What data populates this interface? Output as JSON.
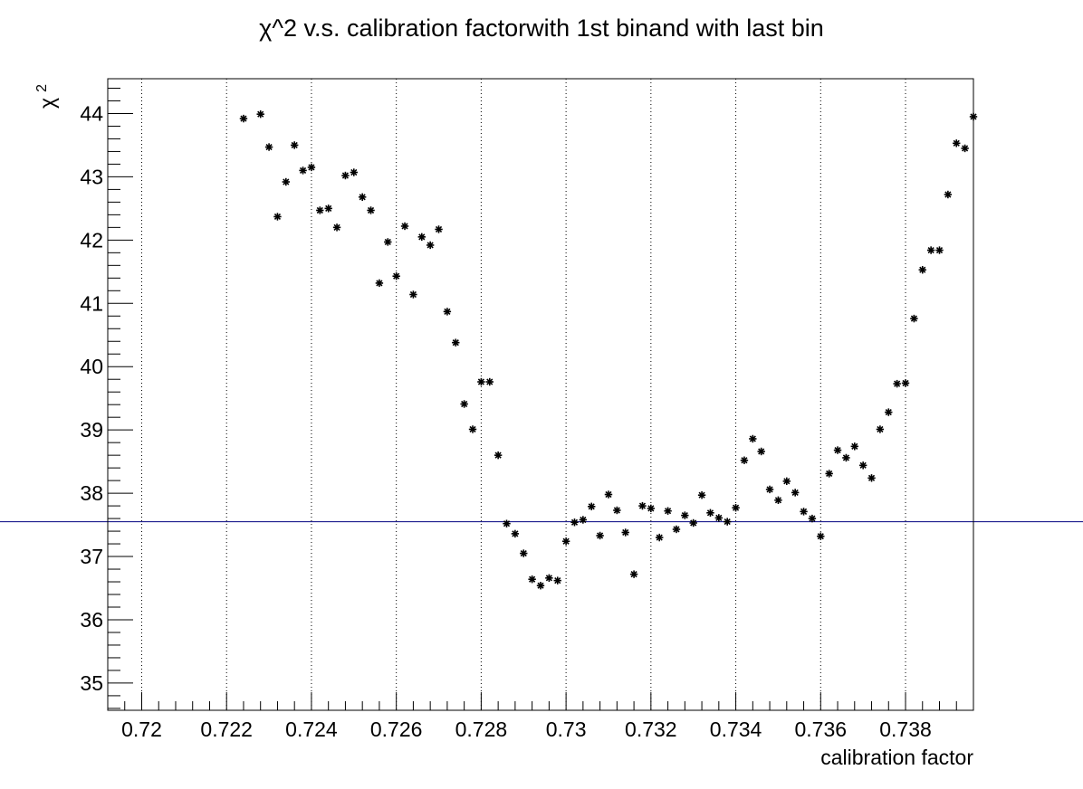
{
  "chart_data": {
    "type": "scatter",
    "title": "χ^2 v.s. calibration factorwith 1st binand with last bin",
    "xlabel": "calibration factor",
    "ylabel": "χ",
    "ylabel_superscript": "2",
    "xlim": [
      0.7192,
      0.7396
    ],
    "ylim": [
      34.57,
      44.55
    ],
    "x_ticks": [
      0.72,
      0.722,
      0.724,
      0.726,
      0.728,
      0.73,
      0.732,
      0.734,
      0.736,
      0.738
    ],
    "x_tick_labels": [
      "0.72",
      "0.722",
      "0.724",
      "0.726",
      "0.728",
      "0.73",
      "0.732",
      "0.734",
      "0.736",
      "0.738"
    ],
    "y_ticks": [
      35,
      36,
      37,
      38,
      39,
      40,
      41,
      42,
      43,
      44
    ],
    "y_tick_labels": [
      "35",
      "36",
      "37",
      "38",
      "39",
      "40",
      "41",
      "42",
      "43",
      "44"
    ],
    "grid": "vertical dotted lines at major x ticks",
    "reference_line": {
      "y": 37.55,
      "color": "#000080"
    },
    "marker_color": "#000000",
    "reference_color": "#00007f",
    "series": [
      {
        "marker": "asterisk",
        "x": [
          0.7224,
          0.7228,
          0.723,
          0.7232,
          0.7234,
          0.7236,
          0.7238,
          0.724,
          0.7242,
          0.7244,
          0.7246,
          0.7248,
          0.725,
          0.7252,
          0.7254,
          0.7256,
          0.7258,
          0.726,
          0.7262,
          0.7264,
          0.7266,
          0.7268,
          0.727,
          0.7272,
          0.7274,
          0.7276,
          0.7278,
          0.728,
          0.7282,
          0.7284,
          0.7286,
          0.7288,
          0.729,
          0.7292,
          0.7294,
          0.7296,
          0.7298,
          0.73,
          0.7302,
          0.7304,
          0.7306,
          0.7308,
          0.731,
          0.7312,
          0.7314,
          0.7316,
          0.7318,
          0.732,
          0.7322,
          0.7324,
          0.7326,
          0.7328,
          0.733,
          0.7332,
          0.7334,
          0.7336,
          0.7338,
          0.734,
          0.7342,
          0.7344,
          0.7346,
          0.7348,
          0.735,
          0.7352,
          0.7354,
          0.7356,
          0.7358,
          0.736,
          0.7362,
          0.7364,
          0.7366,
          0.7368,
          0.737,
          0.7372,
          0.7374,
          0.7376,
          0.7378,
          0.738,
          0.7382,
          0.7384,
          0.7386,
          0.7388,
          0.739,
          0.7392,
          0.7394,
          0.7396
        ],
        "y": [
          43.92,
          43.99,
          43.47,
          42.37,
          42.92,
          43.5,
          43.1,
          43.15,
          42.47,
          42.5,
          42.2,
          43.02,
          43.07,
          42.68,
          42.47,
          41.32,
          41.97,
          41.43,
          42.22,
          41.14,
          42.05,
          41.92,
          42.17,
          40.87,
          40.38,
          39.41,
          39.01,
          39.76,
          39.76,
          38.6,
          37.52,
          37.36,
          37.05,
          36.64,
          36.54,
          36.66,
          36.62,
          37.24,
          37.54,
          37.58,
          37.79,
          37.33,
          37.98,
          37.73,
          37.38,
          36.72,
          37.8,
          37.76,
          37.3,
          37.72,
          37.43,
          37.65,
          37.53,
          37.97,
          37.69,
          37.61,
          37.55,
          37.77,
          38.52,
          38.86,
          38.66,
          38.06,
          37.89,
          38.19,
          38.01,
          37.71,
          37.6,
          37.32,
          38.31,
          38.68,
          38.56,
          38.74,
          38.44,
          38.24,
          39.01,
          39.28,
          39.73,
          39.74,
          40.76,
          41.53,
          41.84,
          41.84,
          42.72,
          43.53,
          43.45,
          43.95
        ]
      }
    ]
  }
}
